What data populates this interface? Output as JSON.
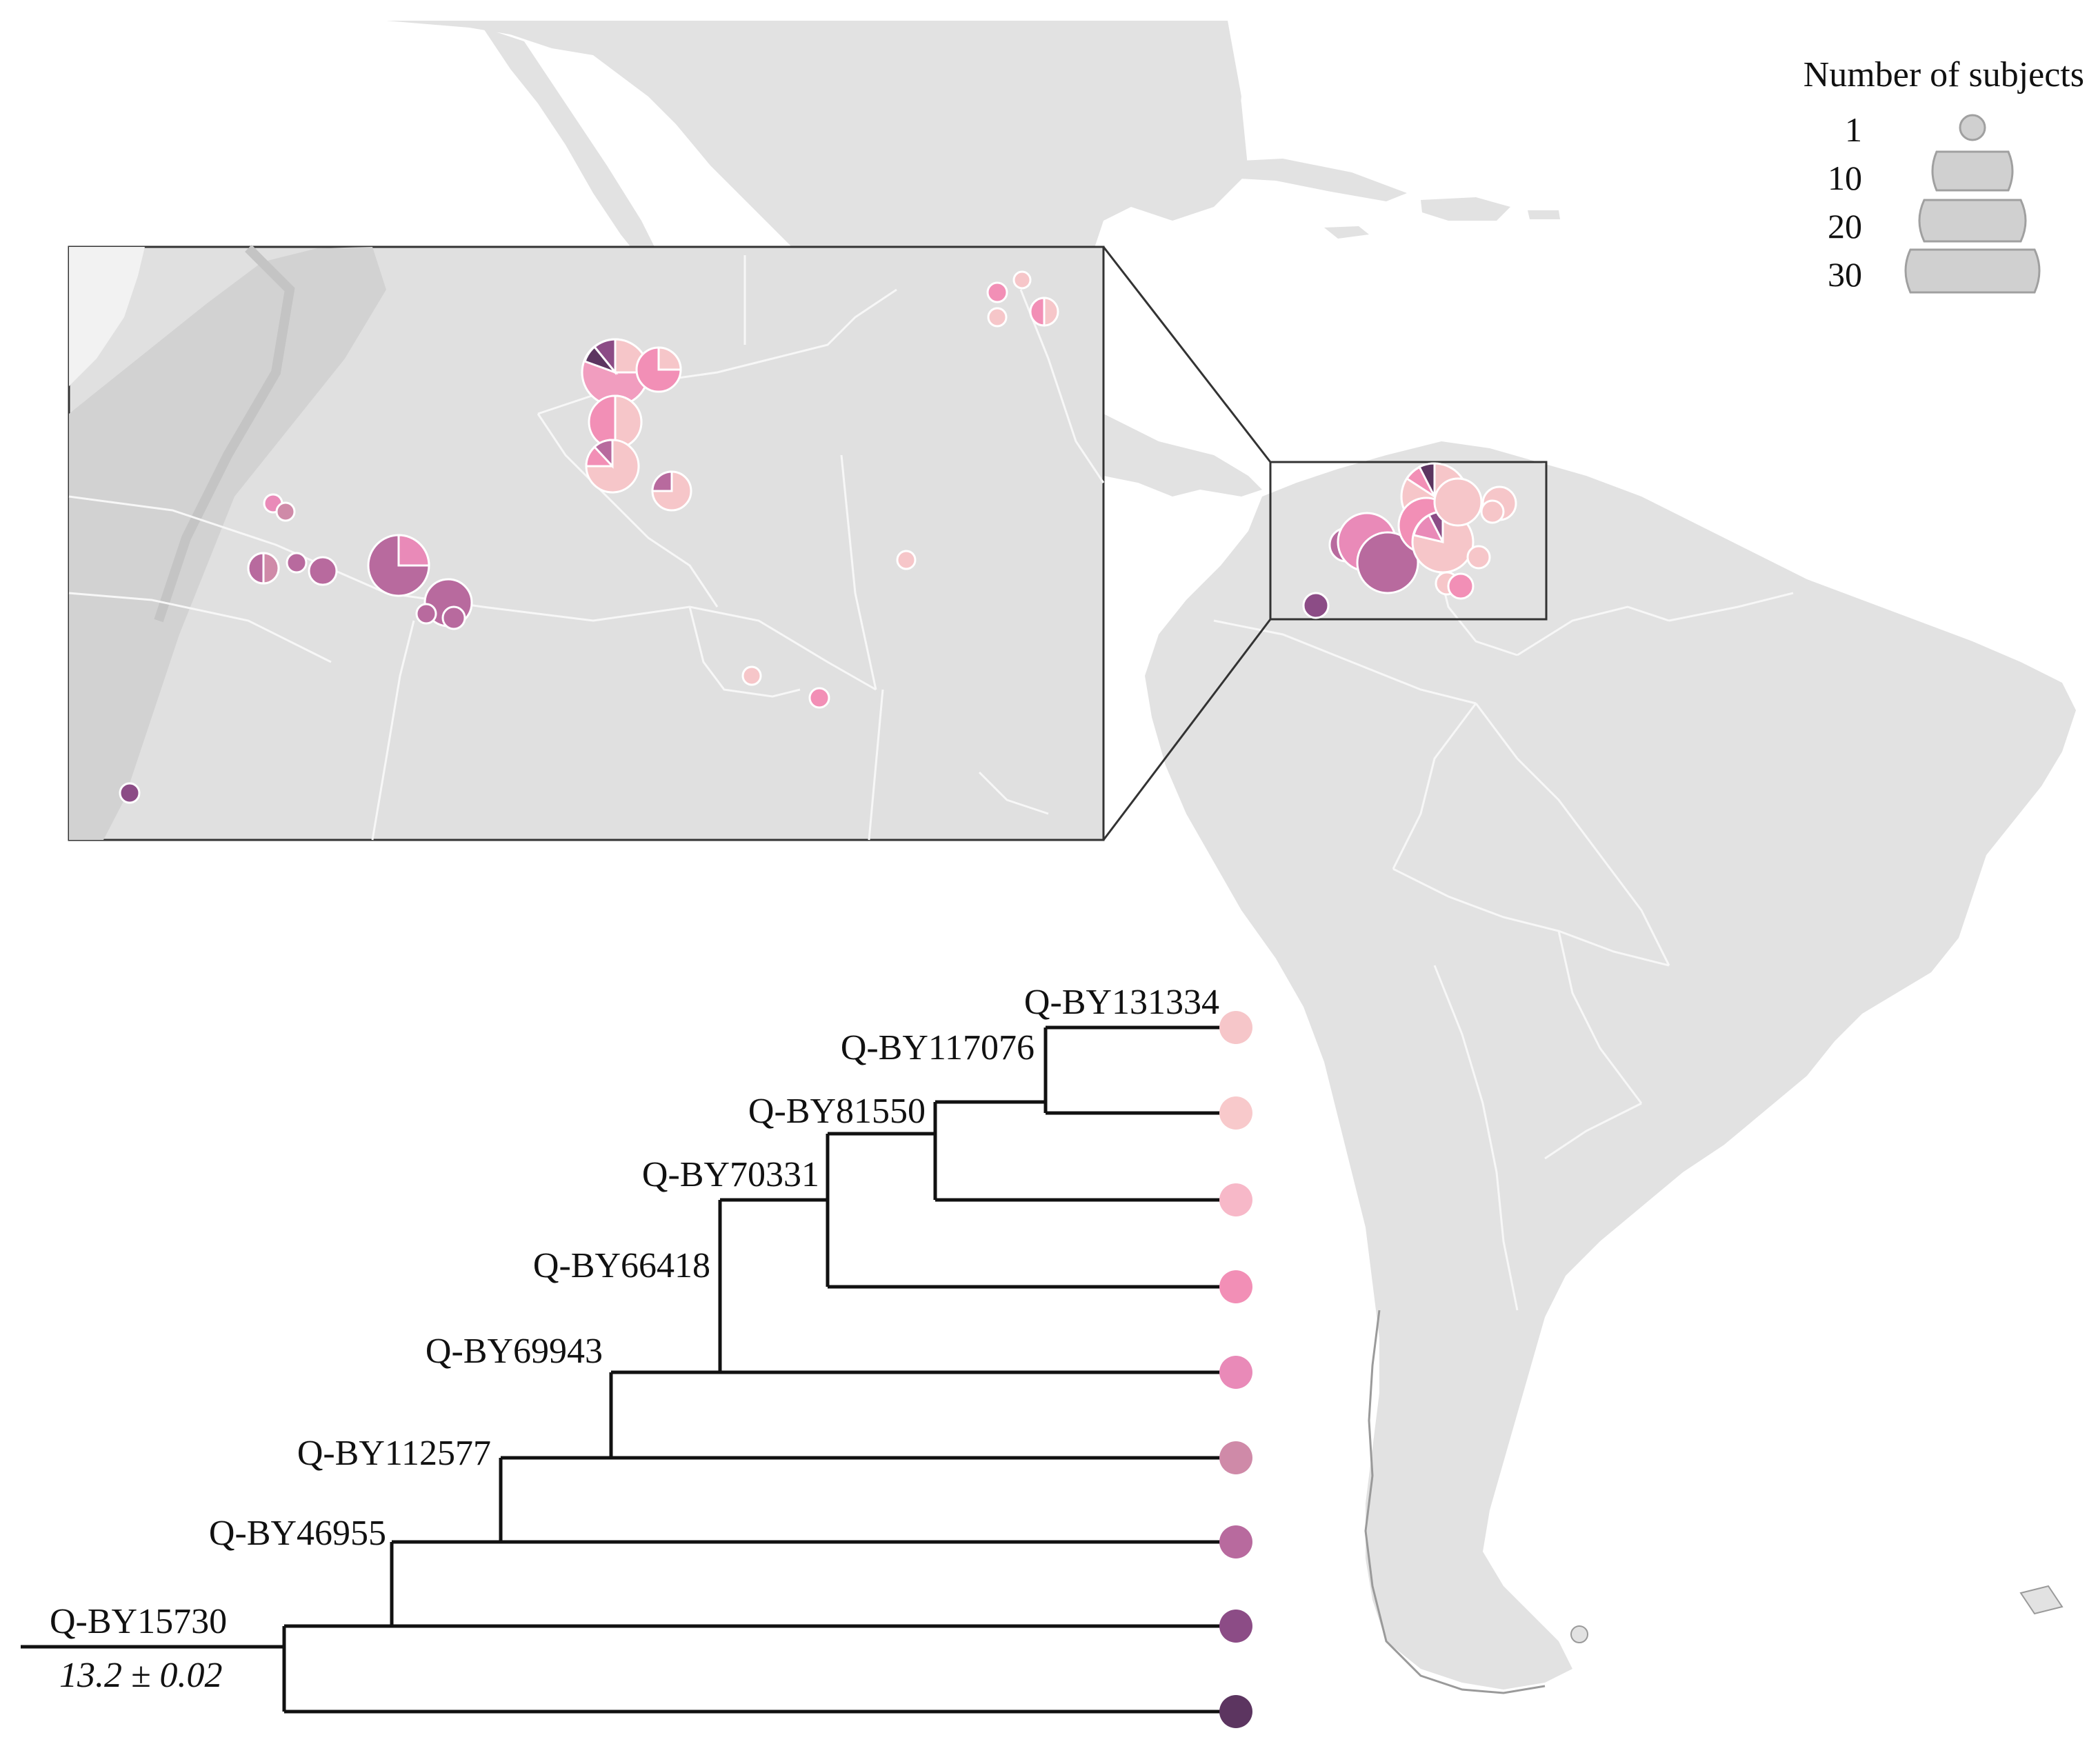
{
  "legend": {
    "title": "Number of subjects",
    "sizes": [
      {
        "label": "1",
        "value": 1
      },
      {
        "label": "10",
        "value": 10
      },
      {
        "label": "20",
        "value": 20
      },
      {
        "label": "30",
        "value": 30
      }
    ],
    "swatch_color": "#d0d0d0"
  },
  "tree": {
    "root_label": "Q-BY15730",
    "root_age": "13.2 ± 0.02",
    "nodes": [
      {
        "id": "n1",
        "label": "Q-BY131334"
      },
      {
        "id": "n2",
        "label": "Q-BY117076"
      },
      {
        "id": "n3",
        "label": "Q-BY81550"
      },
      {
        "id": "n4",
        "label": "Q-BY70331"
      },
      {
        "id": "n5",
        "label": "Q-BY66418"
      },
      {
        "id": "n6",
        "label": "Q-BY69943"
      },
      {
        "id": "n7",
        "label": "Q-BY112577"
      },
      {
        "id": "n8",
        "label": "Q-BY46955"
      }
    ],
    "tip_colors": [
      "#f6c6c9",
      "#f8c9cb",
      "#f7b8c8",
      "#f28fb6",
      "#e98ab8",
      "#cf8aa8",
      "#b86a9e",
      "#8c4c86",
      "#5c3560"
    ]
  },
  "colors": {
    "land": "#e2e2e2",
    "ocean": "#ffffff",
    "border": "#f4f4f4",
    "coast": "#9a9a9a"
  }
}
